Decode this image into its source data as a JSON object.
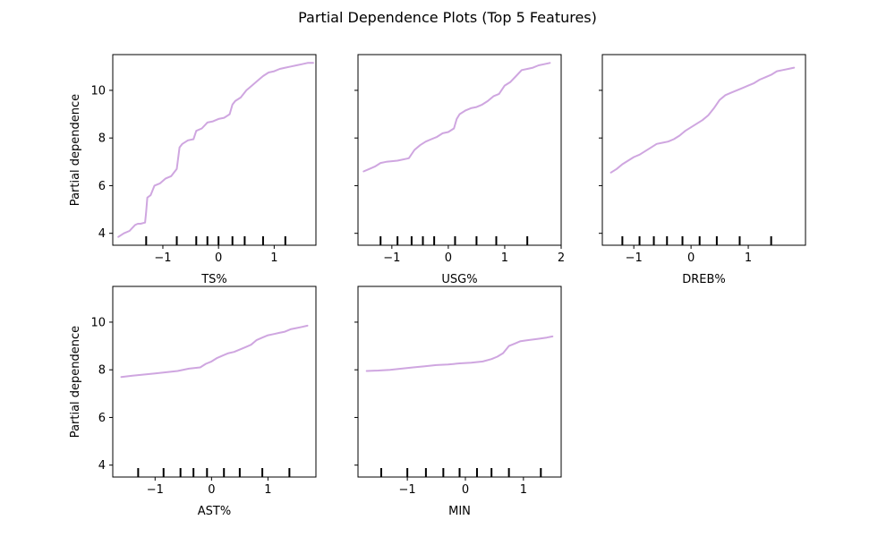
{
  "title": "Partial Dependence Plots (Top 5 Features)",
  "line_color": "#cfa6e0",
  "chart_data": [
    {
      "type": "line",
      "xlabel": "TS%",
      "ylabel": "Partial dependence",
      "xlim": [
        -1.9,
        1.75
      ],
      "ylim": [
        3.5,
        11.5
      ],
      "xticks": [
        -1,
        0,
        1
      ],
      "yticks": [
        4,
        6,
        8,
        10
      ],
      "show_yticklabels": true,
      "deciles": [
        -1.3,
        -0.75,
        -0.4,
        -0.2,
        0.0,
        0.25,
        0.47,
        0.8,
        1.2
      ],
      "x": [
        -1.8,
        -1.7,
        -1.6,
        -1.5,
        -1.45,
        -1.4,
        -1.32,
        -1.3,
        -1.28,
        -1.22,
        -1.15,
        -1.05,
        -0.95,
        -0.85,
        -0.75,
        -0.7,
        -0.65,
        -0.55,
        -0.45,
        -0.4,
        -0.3,
        -0.2,
        -0.1,
        0.0,
        0.1,
        0.2,
        0.25,
        0.3,
        0.4,
        0.5,
        0.6,
        0.7,
        0.8,
        0.9,
        1.0,
        1.1,
        1.2,
        1.3,
        1.4,
        1.5,
        1.6,
        1.7
      ],
      "y": [
        3.85,
        4.0,
        4.1,
        4.35,
        4.4,
        4.4,
        4.45,
        4.9,
        5.5,
        5.6,
        6.0,
        6.1,
        6.3,
        6.4,
        6.7,
        7.6,
        7.75,
        7.9,
        7.95,
        8.3,
        8.4,
        8.65,
        8.7,
        8.8,
        8.85,
        9.0,
        9.4,
        9.55,
        9.7,
        10.0,
        10.2,
        10.4,
        10.6,
        10.75,
        10.8,
        10.9,
        10.95,
        11.0,
        11.05,
        11.1,
        11.15,
        11.15
      ]
    },
    {
      "type": "line",
      "xlabel": "USG%",
      "ylabel": "",
      "xlim": [
        -1.6,
        2.0
      ],
      "ylim": [
        3.5,
        11.5
      ],
      "xticks": [
        -1,
        0,
        1,
        2
      ],
      "yticks": [
        4,
        6,
        8,
        10
      ],
      "show_yticklabels": false,
      "deciles": [
        -1.2,
        -0.9,
        -0.65,
        -0.45,
        -0.25,
        0.12,
        0.5,
        0.85,
        1.4
      ],
      "x": [
        -1.5,
        -1.4,
        -1.3,
        -1.2,
        -1.1,
        -0.9,
        -0.7,
        -0.6,
        -0.5,
        -0.4,
        -0.3,
        -0.2,
        -0.1,
        0.0,
        0.1,
        0.15,
        0.2,
        0.3,
        0.4,
        0.5,
        0.6,
        0.7,
        0.8,
        0.9,
        1.0,
        1.1,
        1.2,
        1.3,
        1.4,
        1.5,
        1.6,
        1.7,
        1.8
      ],
      "y": [
        6.6,
        6.7,
        6.8,
        6.95,
        7.0,
        7.05,
        7.15,
        7.5,
        7.7,
        7.85,
        7.95,
        8.05,
        8.2,
        8.25,
        8.4,
        8.8,
        9.0,
        9.15,
        9.25,
        9.3,
        9.4,
        9.55,
        9.75,
        9.85,
        10.2,
        10.35,
        10.6,
        10.85,
        10.9,
        10.95,
        11.05,
        11.1,
        11.15
      ]
    },
    {
      "type": "line",
      "xlabel": "DREB%",
      "ylabel": "",
      "xlim": [
        -1.55,
        2.0
      ],
      "ylim": [
        3.5,
        11.5
      ],
      "xticks": [
        -1,
        0,
        1
      ],
      "yticks": [
        4,
        6,
        8,
        10
      ],
      "show_yticklabels": false,
      "deciles": [
        -1.2,
        -0.9,
        -0.65,
        -0.42,
        -0.15,
        0.15,
        0.45,
        0.85,
        1.4
      ],
      "x": [
        -1.4,
        -1.3,
        -1.2,
        -1.1,
        -1.0,
        -0.9,
        -0.8,
        -0.7,
        -0.6,
        -0.5,
        -0.4,
        -0.3,
        -0.2,
        -0.1,
        0.0,
        0.1,
        0.2,
        0.3,
        0.4,
        0.5,
        0.6,
        0.7,
        0.8,
        0.9,
        1.0,
        1.1,
        1.2,
        1.3,
        1.4,
        1.5,
        1.6,
        1.7,
        1.8
      ],
      "y": [
        6.55,
        6.7,
        6.9,
        7.05,
        7.2,
        7.3,
        7.45,
        7.6,
        7.75,
        7.8,
        7.85,
        7.95,
        8.1,
        8.3,
        8.45,
        8.6,
        8.75,
        8.95,
        9.25,
        9.6,
        9.8,
        9.9,
        10.0,
        10.1,
        10.2,
        10.3,
        10.45,
        10.55,
        10.65,
        10.8,
        10.85,
        10.9,
        10.95
      ]
    },
    {
      "type": "line",
      "xlabel": "AST%",
      "ylabel": "Partial dependence",
      "xlim": [
        -1.75,
        1.85
      ],
      "ylim": [
        3.5,
        11.5
      ],
      "xticks": [
        -1,
        0,
        1
      ],
      "yticks": [
        4,
        6,
        8,
        10
      ],
      "show_yticklabels": true,
      "deciles": [
        -1.3,
        -0.85,
        -0.55,
        -0.32,
        -0.08,
        0.22,
        0.5,
        0.9,
        1.38
      ],
      "x": [
        -1.6,
        -1.4,
        -1.2,
        -1.0,
        -0.8,
        -0.6,
        -0.4,
        -0.2,
        -0.1,
        0.0,
        0.1,
        0.2,
        0.3,
        0.4,
        0.5,
        0.6,
        0.7,
        0.8,
        0.9,
        1.0,
        1.1,
        1.2,
        1.3,
        1.4,
        1.5,
        1.6,
        1.7
      ],
      "y": [
        7.7,
        7.75,
        7.8,
        7.85,
        7.9,
        7.95,
        8.05,
        8.1,
        8.25,
        8.35,
        8.5,
        8.6,
        8.7,
        8.75,
        8.85,
        8.95,
        9.05,
        9.25,
        9.35,
        9.45,
        9.5,
        9.55,
        9.6,
        9.7,
        9.75,
        9.8,
        9.85
      ]
    },
    {
      "type": "line",
      "xlabel": "MIN",
      "ylabel": "",
      "xlim": [
        -1.85,
        1.65
      ],
      "ylim": [
        3.5,
        11.5
      ],
      "xticks": [
        -1,
        0,
        1
      ],
      "yticks": [
        4,
        6,
        8,
        10
      ],
      "show_yticklabels": false,
      "deciles": [
        -1.45,
        -1.0,
        -0.68,
        -0.38,
        -0.1,
        0.2,
        0.45,
        0.75,
        1.3
      ],
      "x": [
        -1.7,
        -1.5,
        -1.3,
        -1.1,
        -0.9,
        -0.7,
        -0.5,
        -0.3,
        -0.1,
        0.1,
        0.3,
        0.45,
        0.55,
        0.65,
        0.75,
        0.85,
        0.95,
        1.1,
        1.25,
        1.4,
        1.5
      ],
      "y": [
        7.95,
        7.97,
        8.0,
        8.05,
        8.1,
        8.15,
        8.2,
        8.22,
        8.27,
        8.3,
        8.35,
        8.45,
        8.55,
        8.7,
        9.0,
        9.1,
        9.2,
        9.25,
        9.3,
        9.35,
        9.4
      ]
    }
  ]
}
